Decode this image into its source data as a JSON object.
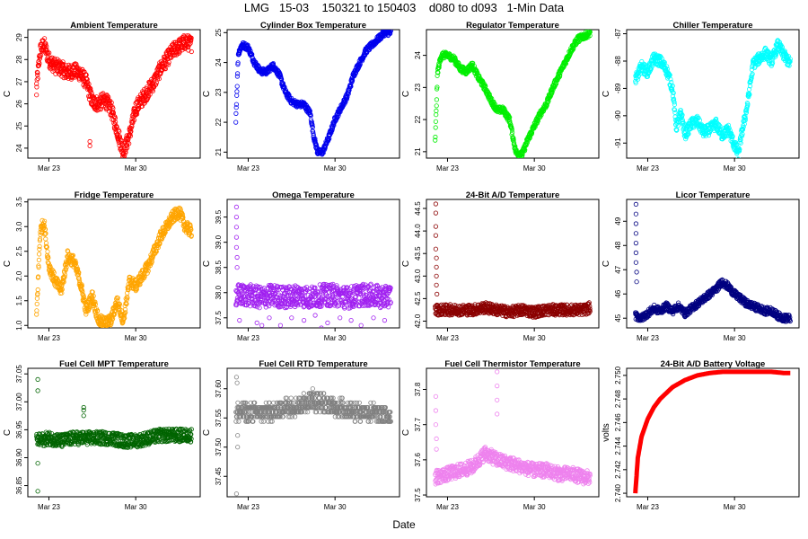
{
  "figure": {
    "title": "LMG   15-03    150321 to 150403    d080 to d093   1-Min Data",
    "xlabel": "Date"
  },
  "chart_data": [
    {
      "type": "scatter",
      "title": "Ambient Temperature",
      "ylabel": "C",
      "color": "#ff0000",
      "ylim": [
        23.55,
        29.35
      ],
      "yticks": [
        24,
        25,
        26,
        27,
        28,
        29
      ],
      "xticks": [
        "Mar 23",
        "Mar 30"
      ],
      "x": [
        81,
        81.3,
        81.6,
        82,
        82.5,
        83,
        83.5,
        84,
        84.5,
        85,
        85.5,
        86,
        86.5,
        87,
        87.5,
        88,
        88.5,
        89,
        89.5,
        90,
        90.5,
        91,
        91.5,
        92,
        92.5,
        93,
        93.5
      ],
      "y": [
        26.8,
        28.4,
        28.7,
        28.0,
        27.7,
        27.6,
        27.4,
        27.5,
        27.4,
        27.0,
        26.1,
        26.0,
        26.2,
        25.8,
        24.8,
        23.8,
        24.6,
        25.8,
        26.2,
        26.6,
        27.0,
        27.6,
        28.0,
        28.4,
        28.6,
        28.8,
        28.7
      ],
      "spread": 0.35,
      "outliers": [
        [
          85.3,
          24.3
        ],
        [
          85.3,
          24.1
        ],
        [
          81.0,
          26.4
        ]
      ]
    },
    {
      "type": "scatter",
      "title": "Cylinder Box Temperature",
      "ylabel": "C",
      "color": "#0000ee",
      "ylim": [
        20.8,
        25.1
      ],
      "yticks": [
        21,
        22,
        23,
        24,
        25
      ],
      "xticks": [
        "Mar 23",
        "Mar 30"
      ],
      "x": [
        81,
        81.2,
        81.5,
        82,
        82.5,
        83,
        83.5,
        84,
        84.5,
        85,
        85.5,
        86,
        86.5,
        87,
        87.3,
        87.6,
        88,
        88.5,
        89,
        89.5,
        90,
        90.5,
        91,
        91.5,
        92,
        92.5,
        93,
        93.5
      ],
      "y": [
        22.1,
        24.3,
        24.6,
        24.5,
        24.0,
        23.7,
        23.7,
        23.9,
        23.6,
        23.0,
        22.7,
        22.6,
        22.6,
        22.3,
        21.5,
        21.0,
        21.0,
        21.5,
        22.1,
        22.5,
        22.9,
        23.6,
        24.0,
        24.4,
        24.6,
        24.8,
        25.0,
        25.0
      ],
      "spread": 0.1,
      "outliers": []
    },
    {
      "type": "scatter",
      "title": "Regulator Temperature",
      "ylabel": "C",
      "color": "#00ee00",
      "ylim": [
        20.8,
        24.8
      ],
      "yticks": [
        21,
        22,
        23,
        24
      ],
      "xticks": [
        "Mar 23",
        "Mar 30"
      ],
      "x": [
        81,
        81.2,
        81.5,
        82,
        82.5,
        83,
        83.5,
        84,
        84.5,
        85,
        85.5,
        86,
        86.5,
        87,
        87.5,
        88,
        88.5,
        89,
        89.5,
        90,
        90.5,
        91,
        91.5,
        92,
        92.5,
        93,
        93.5
      ],
      "y": [
        21.3,
        23.5,
        24.0,
        24.0,
        23.9,
        23.6,
        23.5,
        23.7,
        23.3,
        23.0,
        22.6,
        22.3,
        22.3,
        22.0,
        21.0,
        20.9,
        21.4,
        21.8,
        22.2,
        22.5,
        23.0,
        23.4,
        23.8,
        24.2,
        24.5,
        24.6,
        24.7
      ],
      "spread": 0.1,
      "outliers": []
    },
    {
      "type": "scatter",
      "title": "Chiller Temperature",
      "ylabel": "C",
      "color": "#00ffff",
      "ylim": [
        -91.55,
        -86.85
      ],
      "yticks": [
        -91,
        -90,
        -89,
        -88,
        -87
      ],
      "xticks": [
        "Mar 23",
        "Mar 30"
      ],
      "x": [
        81,
        81.5,
        82,
        82.5,
        83,
        83.5,
        84,
        84.3,
        84.7,
        85,
        85.5,
        86,
        86.5,
        87,
        87.5,
        88,
        88.5,
        89,
        89.3,
        89.6,
        90,
        90.5,
        91,
        91.5,
        92,
        92.5,
        93,
        93.5
      ],
      "y": [
        -88.7,
        -88.2,
        -88.4,
        -87.9,
        -88.0,
        -88.3,
        -89.0,
        -90.4,
        -89.9,
        -90.7,
        -90.3,
        -90.2,
        -90.6,
        -90.5,
        -90.3,
        -90.7,
        -90.5,
        -91.1,
        -91.4,
        -90.6,
        -89.7,
        -88.1,
        -87.9,
        -87.7,
        -88.0,
        -87.4,
        -87.8,
        -88.1
      ],
      "spread": 0.2,
      "outliers": []
    },
    {
      "type": "scatter",
      "title": "Fridge Temperature",
      "ylabel": "C",
      "color": "#ffa500",
      "ylim": [
        0.95,
        3.55
      ],
      "yticks": [
        1.0,
        1.5,
        2.0,
        2.5,
        3.0,
        3.5
      ],
      "xticks": [
        "Mar 23",
        "Mar 30"
      ],
      "x": [
        81,
        81.3,
        81.6,
        82,
        82.5,
        83,
        83.5,
        84,
        84.5,
        85,
        85.5,
        86,
        86.5,
        87,
        87.5,
        88,
        88.5,
        89,
        89.5,
        90,
        90.5,
        91,
        91.5,
        92,
        92.5,
        93,
        93.5
      ],
      "y": [
        1.2,
        2.9,
        3.1,
        2.2,
        1.9,
        1.7,
        2.4,
        2.3,
        1.9,
        1.3,
        1.6,
        1.1,
        1.05,
        1.1,
        1.5,
        1.1,
        1.9,
        1.8,
        2.0,
        2.2,
        2.5,
        2.8,
        3.0,
        3.2,
        3.3,
        3.0,
        2.9
      ],
      "spread": 0.12,
      "outliers": []
    },
    {
      "type": "scatter",
      "title": "Omega Temperature",
      "ylabel": "C",
      "color": "#a020f0",
      "ylim": [
        37.3,
        39.85
      ],
      "yticks": [
        37.5,
        38.0,
        38.5,
        39.0,
        39.5
      ],
      "xticks": [
        "Mar 23",
        "Mar 30"
      ],
      "x": [
        81,
        82,
        83,
        84,
        85,
        86,
        87,
        88,
        89,
        90,
        91,
        92,
        93,
        93.5
      ],
      "y": [
        37.95,
        37.95,
        37.9,
        37.95,
        37.9,
        37.95,
        37.9,
        37.95,
        37.95,
        37.9,
        37.95,
        37.95,
        37.9,
        37.95
      ],
      "spread": 0.22,
      "outliers": [
        [
          81.05,
          39.7
        ],
        [
          81.05,
          39.5
        ],
        [
          81.05,
          39.3
        ],
        [
          81.05,
          39.1
        ],
        [
          81.05,
          38.9
        ],
        [
          81.1,
          38.7
        ],
        [
          81.1,
          38.5
        ],
        [
          81.3,
          37.45
        ],
        [
          82.7,
          37.4
        ],
        [
          83.7,
          37.5
        ],
        [
          84.6,
          37.35
        ],
        [
          85.5,
          37.5
        ],
        [
          86.5,
          37.45
        ],
        [
          87.4,
          37.55
        ],
        [
          88.4,
          37.4
        ],
        [
          89.4,
          37.5
        ],
        [
          90.3,
          37.45
        ],
        [
          91.1,
          37.35
        ],
        [
          92.1,
          37.5
        ],
        [
          93.0,
          37.45
        ],
        [
          83.1,
          37.35
        ],
        [
          87.9,
          37.3
        ]
      ]
    },
    {
      "type": "scatter",
      "title": "24-Bit A/D Temperature",
      "ylabel": "C",
      "color": "#8b0000",
      "ylim": [
        41.85,
        44.7
      ],
      "yticks": [
        42.0,
        42.5,
        43.0,
        43.5,
        44.0,
        44.5
      ],
      "xticks": [
        "Mar 23",
        "Mar 30"
      ],
      "x": [
        81,
        82,
        83,
        84,
        85,
        86,
        87,
        88,
        89,
        90,
        91,
        92,
        93,
        93.5
      ],
      "y": [
        42.25,
        42.25,
        42.25,
        42.25,
        42.3,
        42.25,
        42.2,
        42.25,
        42.2,
        42.25,
        42.25,
        42.25,
        42.25,
        42.3
      ],
      "spread": 0.12,
      "outliers": [
        [
          81.05,
          44.6
        ],
        [
          81.05,
          44.4
        ],
        [
          81.05,
          44.1
        ],
        [
          81.05,
          43.9
        ],
        [
          81.05,
          43.6
        ],
        [
          81.1,
          43.4
        ],
        [
          81.1,
          43.2
        ],
        [
          81.1,
          43.0
        ],
        [
          81.1,
          42.8
        ],
        [
          81.15,
          42.6
        ]
      ]
    },
    {
      "type": "scatter",
      "title": "Licor Temperature",
      "ylabel": "C",
      "color": "#000080",
      "ylim": [
        44.6,
        49.9
      ],
      "yticks": [
        45,
        46,
        47,
        48,
        49
      ],
      "xticks": [
        "Mar 23",
        "Mar 30"
      ],
      "x": [
        81,
        81.5,
        82,
        82.5,
        83,
        83.5,
        84,
        84.5,
        85,
        85.5,
        86,
        86.5,
        87,
        87.5,
        88,
        88.5,
        89,
        89.5,
        90,
        90.5,
        91,
        91.5,
        92,
        92.5,
        93,
        93.5
      ],
      "y": [
        45.1,
        45.0,
        45.2,
        45.4,
        45.3,
        45.5,
        45.3,
        45.5,
        45.2,
        45.4,
        45.6,
        45.8,
        46.0,
        46.2,
        46.5,
        46.3,
        46.0,
        45.8,
        45.6,
        45.5,
        45.4,
        45.3,
        45.3,
        45.1,
        45.0,
        45.0
      ],
      "spread": 0.15,
      "outliers": [
        [
          81.05,
          49.7
        ],
        [
          81.05,
          49.3
        ],
        [
          81.05,
          48.9
        ],
        [
          81.05,
          48.5
        ],
        [
          81.05,
          48.1
        ],
        [
          81.05,
          47.7
        ],
        [
          81.05,
          47.3
        ],
        [
          81.1,
          46.9
        ],
        [
          81.1,
          46.5
        ]
      ]
    },
    {
      "type": "scatter",
      "title": "Fuel Cell MPT Temperature",
      "ylabel": "C",
      "color": "#006400",
      "ylim": [
        36.83,
        37.06
      ],
      "yticks": [
        36.85,
        36.9,
        36.95,
        37.0,
        37.05
      ],
      "xticks": [
        "Mar 23",
        "Mar 30"
      ],
      "x": [
        81,
        82,
        83,
        84,
        85,
        86,
        87,
        88,
        89,
        90,
        91,
        92,
        93,
        93.5
      ],
      "y": [
        36.93,
        36.935,
        36.93,
        36.935,
        36.935,
        36.935,
        36.935,
        36.93,
        36.93,
        36.935,
        36.94,
        36.94,
        36.94,
        36.94
      ],
      "spread": 0.012,
      "outliers": [
        [
          81.1,
          37.04
        ],
        [
          81.1,
          37.02
        ],
        [
          81.1,
          36.84
        ],
        [
          81.1,
          36.89
        ],
        [
          84.8,
          36.99
        ],
        [
          84.8,
          36.985
        ],
        [
          84.8,
          36.975
        ]
      ]
    },
    {
      "type": "scatter",
      "title": "Fuel Cell RTD Temperature",
      "ylabel": "C",
      "color": "#808080",
      "ylim": [
        37.415,
        37.635
      ],
      "yticks": [
        37.45,
        37.5,
        37.55,
        37.6
      ],
      "xticks": [
        "Mar 23",
        "Mar 30"
      ],
      "x": [
        81,
        82,
        83,
        84,
        85,
        86,
        87,
        88,
        89,
        90,
        91,
        92,
        93,
        93.5
      ],
      "y": [
        37.56,
        37.56,
        37.56,
        37.56,
        37.57,
        37.57,
        37.58,
        37.575,
        37.57,
        37.565,
        37.56,
        37.56,
        37.555,
        37.555
      ],
      "spread": 0.015,
      "quantize": 0.008,
      "outliers": [
        [
          81.05,
          37.42
        ],
        [
          81.05,
          37.62
        ],
        [
          81.1,
          37.61
        ],
        [
          81.15,
          37.5
        ],
        [
          81.15,
          37.52
        ],
        [
          87.2,
          37.6
        ],
        [
          87.2,
          37.59
        ]
      ]
    },
    {
      "type": "scatter",
      "title": "Fuel Cell Thermistor Temperature",
      "ylabel": "C",
      "color": "#ee82ee",
      "ylim": [
        37.495,
        37.86
      ],
      "yticks": [
        37.5,
        37.6,
        37.7,
        37.8
      ],
      "xticks": [
        "Mar 23",
        "Mar 30"
      ],
      "x": [
        81,
        82,
        83,
        84,
        84.8,
        85,
        86,
        87,
        88,
        89,
        90,
        91,
        92,
        93,
        93.5
      ],
      "y": [
        37.55,
        37.56,
        37.57,
        37.58,
        37.61,
        37.62,
        37.6,
        37.59,
        37.58,
        37.57,
        37.57,
        37.56,
        37.56,
        37.55,
        37.55
      ],
      "spread": 0.02,
      "outliers": [
        [
          81.05,
          37.78
        ],
        [
          81.05,
          37.74
        ],
        [
          81.05,
          37.7
        ],
        [
          81.1,
          37.66
        ],
        [
          81.1,
          37.63
        ],
        [
          86.0,
          37.85
        ],
        [
          86.0,
          37.81
        ],
        [
          86.0,
          37.77
        ],
        [
          86.0,
          37.73
        ]
      ]
    },
    {
      "type": "line",
      "title": "24-Bit A/D Battery Voltage",
      "ylabel": "volts",
      "color": "#ff0000",
      "ylim": [
        2.7397,
        2.7506
      ],
      "yticks": [
        2.74,
        2.742,
        2.744,
        2.746,
        2.748,
        2.75
      ],
      "xticks": [
        "Mar 23",
        "Mar 30"
      ],
      "x": [
        81,
        81.2,
        81.5,
        82,
        82.5,
        83,
        84,
        85,
        86,
        87,
        88,
        89,
        90,
        91,
        92,
        93,
        93.5
      ],
      "y": [
        2.74,
        2.743,
        2.7448,
        2.7463,
        2.7473,
        2.748,
        2.749,
        2.7496,
        2.75,
        2.7502,
        2.7503,
        2.7503,
        2.7503,
        2.7503,
        2.7503,
        2.7502,
        2.7502
      ],
      "spread": 4e-05,
      "outliers": []
    }
  ]
}
